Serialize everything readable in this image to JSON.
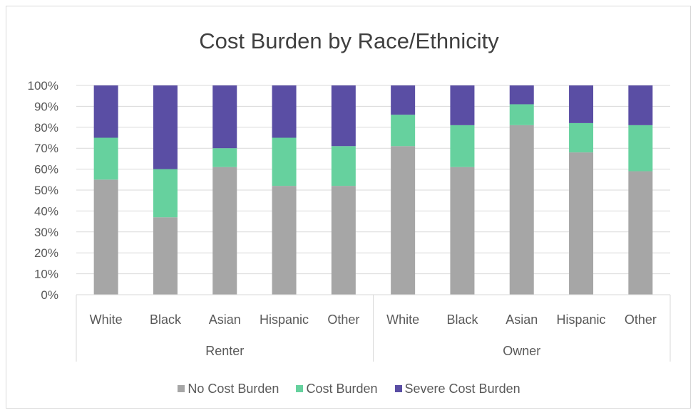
{
  "chart_data": {
    "type": "bar",
    "stacked": true,
    "percent_stacked": true,
    "title": "Cost Burden by Race/Ethnicity",
    "ylim": [
      0,
      100
    ],
    "yticks": [
      "0%",
      "10%",
      "20%",
      "30%",
      "40%",
      "50%",
      "60%",
      "70%",
      "80%",
      "90%",
      "100%"
    ],
    "groups": [
      {
        "label": "Renter",
        "categories": [
          "White",
          "Black",
          "Asian",
          "Hispanic",
          "Other"
        ]
      },
      {
        "label": "Owner",
        "categories": [
          "White",
          "Black",
          "Asian",
          "Hispanic",
          "Other"
        ]
      }
    ],
    "categories": [
      "White",
      "Black",
      "Asian",
      "Hispanic",
      "Other",
      "White",
      "Black",
      "Asian",
      "Hispanic",
      "Other"
    ],
    "series": [
      {
        "name": "No Cost Burden",
        "color": "#a6a6a6",
        "values": [
          55,
          37,
          61,
          52,
          52,
          71,
          61,
          81,
          68,
          59
        ]
      },
      {
        "name": "Cost Burden",
        "color": "#66d19e",
        "values": [
          20,
          23,
          9,
          23,
          19,
          15,
          20,
          10,
          14,
          22
        ]
      },
      {
        "name": "Severe Cost Burden",
        "color": "#5a4ea4",
        "values": [
          25,
          40,
          30,
          25,
          29,
          14,
          19,
          9,
          18,
          19
        ]
      }
    ],
    "legend_position": "bottom",
    "grid": true
  }
}
